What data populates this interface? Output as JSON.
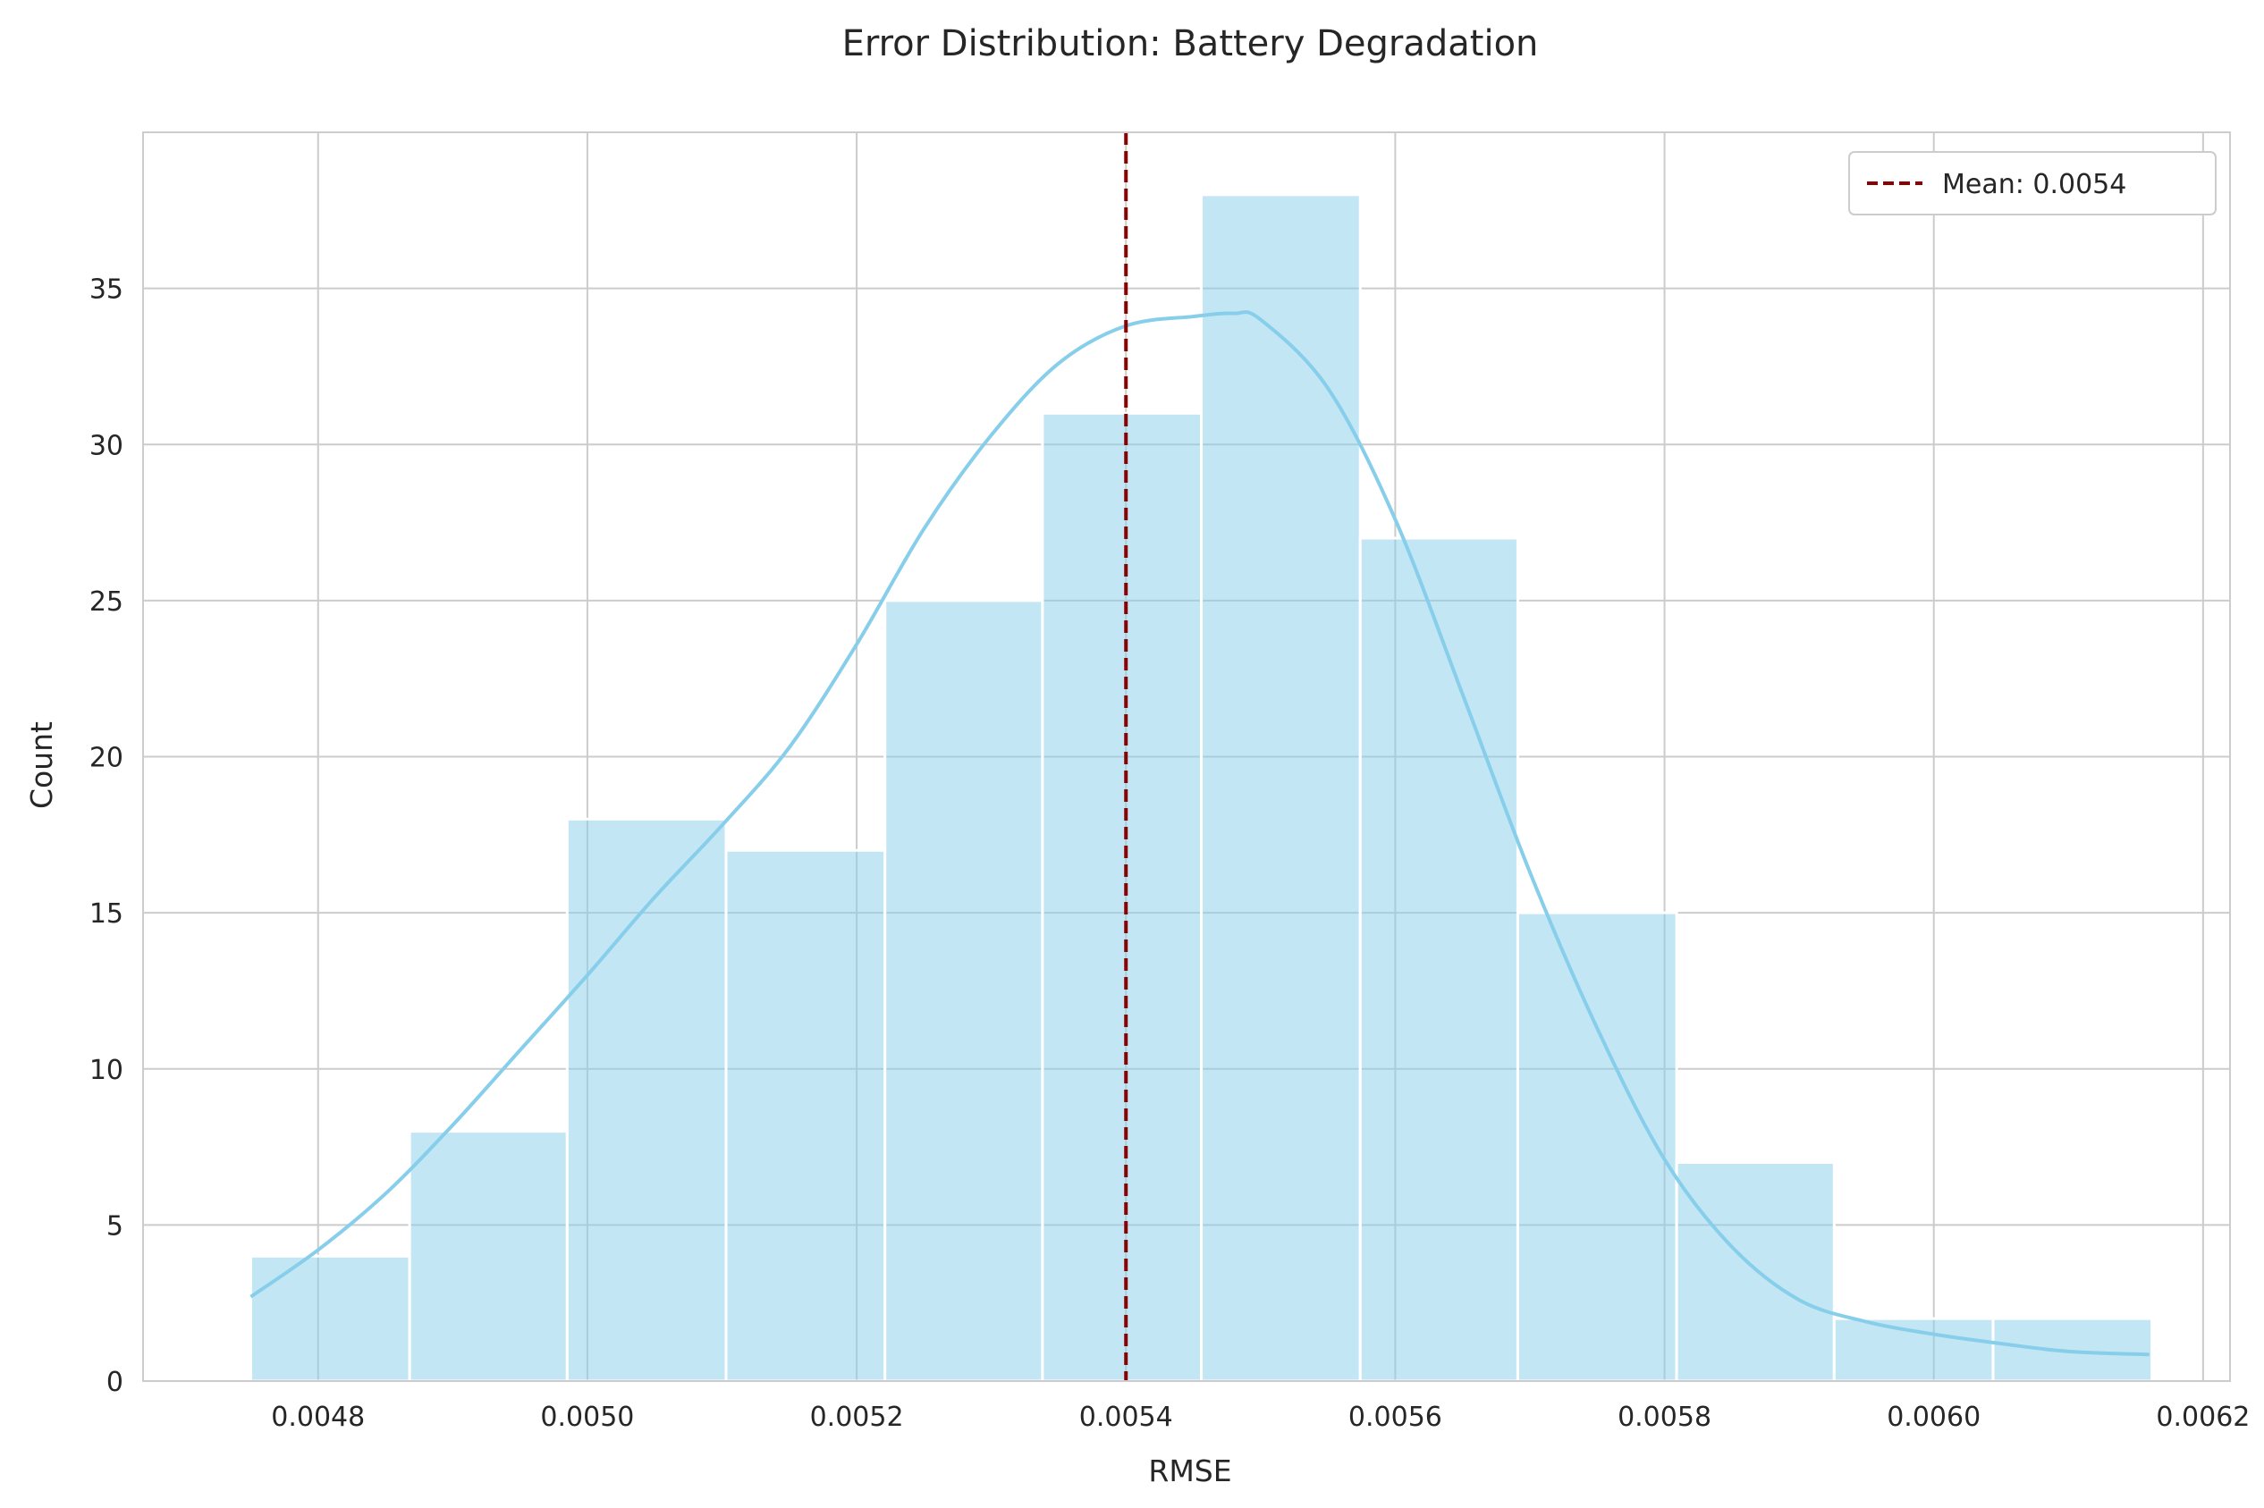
{
  "chart_data": {
    "type": "bar",
    "subtype": "histogram-with-kde",
    "title": "Error Distribution: Battery Degradation",
    "xlabel": "RMSE",
    "ylabel": "Count",
    "xlim": [
      0.00467,
      0.00622
    ],
    "ylim": [
      0,
      40
    ],
    "x_ticks": [
      0.0048,
      0.005,
      0.0052,
      0.0054,
      0.0056,
      0.0058,
      0.006,
      0.0062
    ],
    "x_tick_labels": [
      "0.0048",
      "0.0050",
      "0.0052",
      "0.0054",
      "0.0056",
      "0.0058",
      "0.0060",
      "0.0062"
    ],
    "y_ticks": [
      0,
      5,
      10,
      15,
      20,
      25,
      30,
      35
    ],
    "y_tick_labels": [
      "0",
      "5",
      "10",
      "15",
      "20",
      "25",
      "30",
      "35"
    ],
    "bin_edges": [
      0.00475,
      0.004868,
      0.004985,
      0.005103,
      0.005221,
      0.005338,
      0.005456,
      0.005574,
      0.005691,
      0.005809,
      0.005926,
      0.006044,
      0.006162
    ],
    "counts": [
      4,
      8,
      18,
      17,
      25,
      31,
      38,
      27,
      15,
      7,
      2,
      2
    ],
    "kde": {
      "x": [
        0.00475,
        0.0048,
        0.00485,
        0.0049,
        0.00495,
        0.005,
        0.00505,
        0.0051,
        0.00515,
        0.0052,
        0.00525,
        0.0053,
        0.00535,
        0.0054,
        0.00545,
        0.00548,
        0.0055,
        0.00555,
        0.0056,
        0.00565,
        0.0057,
        0.00575,
        0.0058,
        0.00585,
        0.0059,
        0.00595,
        0.006,
        0.00605,
        0.0061,
        0.00616
      ],
      "y": [
        2.7,
        4.2,
        6.0,
        8.2,
        10.6,
        13.0,
        15.5,
        17.8,
        20.3,
        23.6,
        27.3,
        30.3,
        32.6,
        33.8,
        34.1,
        34.2,
        34.0,
        31.8,
        27.6,
        22.0,
        16.3,
        11.3,
        7.1,
        4.3,
        2.6,
        1.9,
        1.5,
        1.2,
        0.95,
        0.85
      ]
    },
    "mean_line": {
      "x": 0.0054,
      "label": "Mean: 0.0054"
    },
    "grid": true,
    "legend_position": "top-right",
    "colors": {
      "bars": "#87ceeb",
      "kde": "#87ceeb",
      "mean_line": "#8b0000",
      "grid": "#cccccc",
      "axes": "#cccccc",
      "text": "#262626"
    }
  }
}
